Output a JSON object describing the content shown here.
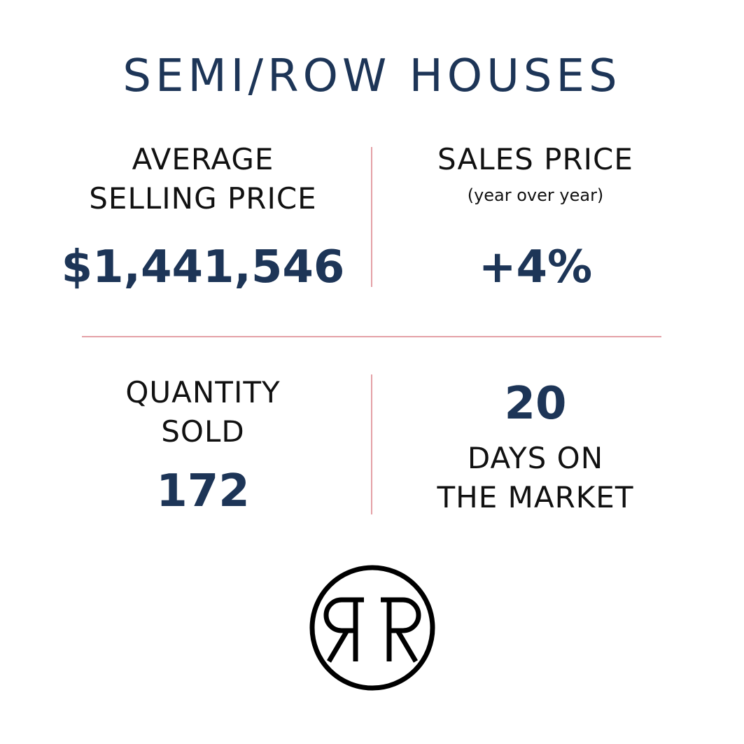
{
  "header": {
    "title": "SEMI/ROW HOUSES"
  },
  "stats": [
    {
      "label": [
        "AVERAGE",
        "SELLING PRICE"
      ],
      "value": "$1,441,546"
    },
    {
      "label": [
        "SALES PRICE"
      ],
      "note": "(year over year)",
      "value": "+4%"
    },
    {
      "label": [
        "QUANTITY",
        "SOLD"
      ],
      "value": "172"
    },
    {
      "value": "20",
      "label": [
        "DAYS ON",
        "THE MARKET"
      ]
    }
  ]
}
